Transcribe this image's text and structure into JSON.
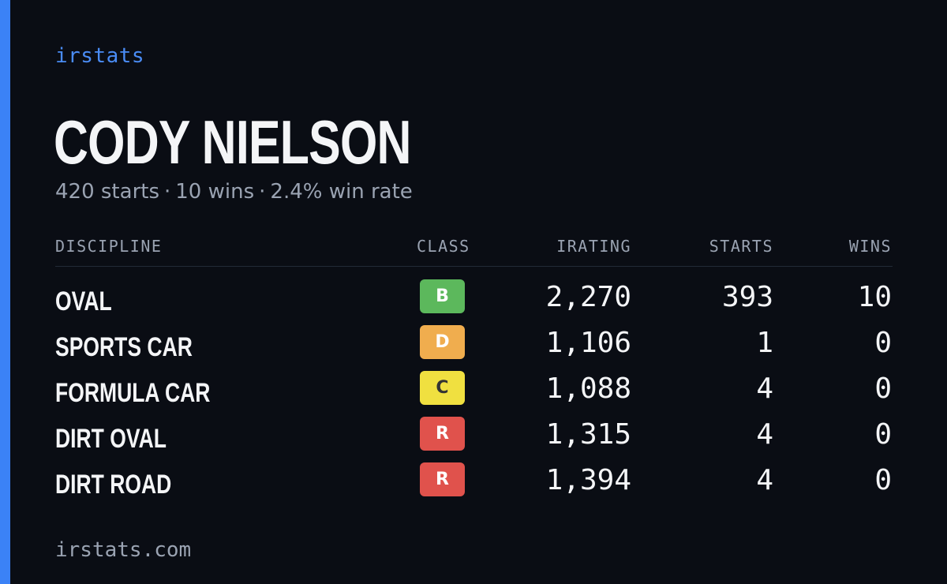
{
  "brand": "irstats",
  "player": {
    "name": "CODY NIELSON",
    "summary": {
      "starts": "420 starts",
      "wins": "10 wins",
      "win_rate": "2.4% win rate",
      "separator": "·"
    }
  },
  "table": {
    "headers": {
      "discipline": "DISCIPLINE",
      "class": "CLASS",
      "irating": "IRATING",
      "starts": "STARTS",
      "wins": "WINS"
    },
    "rows": [
      {
        "discipline": "OVAL",
        "class": "B",
        "class_color": "#5cb85c",
        "class_text_color": "#ffffff",
        "irating": "2,270",
        "starts": "393",
        "wins": "10"
      },
      {
        "discipline": "SPORTS CAR",
        "class": "D",
        "class_color": "#f0ad4e",
        "class_text_color": "#ffffff",
        "irating": "1,106",
        "starts": "1",
        "wins": "0"
      },
      {
        "discipline": "FORMULA CAR",
        "class": "C",
        "class_color": "#f0e040",
        "class_text_color": "#333333",
        "irating": "1,088",
        "starts": "4",
        "wins": "0"
      },
      {
        "discipline": "DIRT OVAL",
        "class": "R",
        "class_color": "#e0524c",
        "class_text_color": "#ffffff",
        "irating": "1,315",
        "starts": "4",
        "wins": "0"
      },
      {
        "discipline": "DIRT ROAD",
        "class": "R",
        "class_color": "#e0524c",
        "class_text_color": "#ffffff",
        "irating": "1,394",
        "starts": "4",
        "wins": "0"
      }
    ]
  },
  "footer": "irstats.com",
  "colors": {
    "background": "#0a0d14",
    "accent": "#3b82f6"
  }
}
